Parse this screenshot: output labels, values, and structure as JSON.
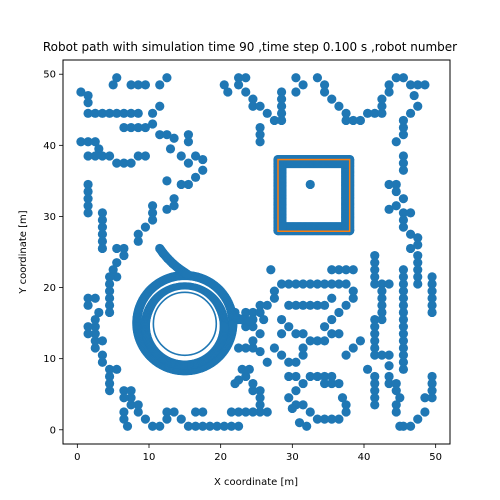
{
  "chart_data": {
    "type": "scatter",
    "title": "Robot path with simulation time 90 ,time step 0.100 s ,robot number",
    "xlabel": "X coordinate [m]",
    "ylabel": "Y coordinate [m]",
    "xlim": [
      -2,
      52
    ],
    "ylim": [
      -2,
      52
    ],
    "xticks": [
      0,
      10,
      20,
      30,
      40,
      50
    ],
    "yticks": [
      0,
      10,
      20,
      30,
      40,
      50
    ],
    "grid": false,
    "colors": {
      "path": "#1f77b4",
      "target": "#ff7f0e"
    },
    "obstacles": [
      [
        0.5,
        47.5
      ],
      [
        1.5,
        47.0
      ],
      [
        1.5,
        46.0
      ],
      [
        5.5,
        49.5
      ],
      [
        5.0,
        48.5
      ],
      [
        7.5,
        48.5
      ],
      [
        8.5,
        48.5
      ],
      [
        9.5,
        48.5
      ],
      [
        11.5,
        48.5
      ],
      [
        12.5,
        49.5
      ],
      [
        1.5,
        44.5
      ],
      [
        2.5,
        44.5
      ],
      [
        3.5,
        44.5
      ],
      [
        4.5,
        44.5
      ],
      [
        5.5,
        44.5
      ],
      [
        6.5,
        44.5
      ],
      [
        7.5,
        44.5
      ],
      [
        8.5,
        44.5
      ],
      [
        10.5,
        44.5
      ],
      [
        11.5,
        45.5
      ],
      [
        6.5,
        42.5
      ],
      [
        7.5,
        42.5
      ],
      [
        8.5,
        42.5
      ],
      [
        9.5,
        42.5
      ],
      [
        10.5,
        43.0
      ],
      [
        11.5,
        41.5
      ],
      [
        12.5,
        41.5
      ],
      [
        13.5,
        41.0
      ],
      [
        15.5,
        41.5
      ],
      [
        15.5,
        40.5
      ],
      [
        0.5,
        40.5
      ],
      [
        1.5,
        40.5
      ],
      [
        2.5,
        40.5
      ],
      [
        3.0,
        39.5
      ],
      [
        1.5,
        38.5
      ],
      [
        2.5,
        38.5
      ],
      [
        3.5,
        38.5
      ],
      [
        4.5,
        38.5
      ],
      [
        5.5,
        37.5
      ],
      [
        6.5,
        37.5
      ],
      [
        7.5,
        37.5
      ],
      [
        8.5,
        38.5
      ],
      [
        9.5,
        38.5
      ],
      [
        13.0,
        39.5
      ],
      [
        14.5,
        38.5
      ],
      [
        15.5,
        37.5
      ],
      [
        16.5,
        38.5
      ],
      [
        17.5,
        38.0
      ],
      [
        17.5,
        36.5
      ],
      [
        16.5,
        35.5
      ],
      [
        15.5,
        34.5
      ],
      [
        14.5,
        34.5
      ],
      [
        12.5,
        35.0
      ],
      [
        1.5,
        34.5
      ],
      [
        1.5,
        33.5
      ],
      [
        1.5,
        32.5
      ],
      [
        1.5,
        31.5
      ],
      [
        1.5,
        30.5
      ],
      [
        3.5,
        30.5
      ],
      [
        3.5,
        29.5
      ],
      [
        3.5,
        28.5
      ],
      [
        3.5,
        27.5
      ],
      [
        3.5,
        26.5
      ],
      [
        3.5,
        25.5
      ],
      [
        5.5,
        25.5
      ],
      [
        6.5,
        25.5
      ],
      [
        6.5,
        24.5
      ],
      [
        5.5,
        23.5
      ],
      [
        5.0,
        22.5
      ],
      [
        5.5,
        21.5
      ],
      [
        4.5,
        21.5
      ],
      [
        4.5,
        20.5
      ],
      [
        4.5,
        19.5
      ],
      [
        4.5,
        18.5
      ],
      [
        2.5,
        18.5
      ],
      [
        1.5,
        18.5
      ],
      [
        1.5,
        17.5
      ],
      [
        4.5,
        17.5
      ],
      [
        4.5,
        16.5
      ],
      [
        10.5,
        31.5
      ],
      [
        10.5,
        30.5
      ],
      [
        10.5,
        29.5
      ],
      [
        9.5,
        28.5
      ],
      [
        8.5,
        27.5
      ],
      [
        8.5,
        26.5
      ],
      [
        13.5,
        32.5
      ],
      [
        13.5,
        31.5
      ],
      [
        12.5,
        31.0
      ],
      [
        20.5,
        48.5
      ],
      [
        21.0,
        47.5
      ],
      [
        22.5,
        49.5
      ],
      [
        23.5,
        49.5
      ],
      [
        22.5,
        48.5
      ],
      [
        23.5,
        47.5
      ],
      [
        24.5,
        46.5
      ],
      [
        24.5,
        45.5
      ],
      [
        25.5,
        45.5
      ],
      [
        26.5,
        44.5
      ],
      [
        27.5,
        43.5
      ],
      [
        25.5,
        42.5
      ],
      [
        25.5,
        41.5
      ],
      [
        25.5,
        40.5
      ],
      [
        28.5,
        47.5
      ],
      [
        28.5,
        46.5
      ],
      [
        28.5,
        45.5
      ],
      [
        28.5,
        44.5
      ],
      [
        28.5,
        43.5
      ],
      [
        30.5,
        47.5
      ],
      [
        31.5,
        48.5
      ],
      [
        30.5,
        49.5
      ],
      [
        33.5,
        49.5
      ],
      [
        34.5,
        48.5
      ],
      [
        34.5,
        47.5
      ],
      [
        35.5,
        46.5
      ],
      [
        36.5,
        45.5
      ],
      [
        37.5,
        44.5
      ],
      [
        37.5,
        43.5
      ],
      [
        38.5,
        43.5
      ],
      [
        39.5,
        43.5
      ],
      [
        40.5,
        44.5
      ],
      [
        41.5,
        44.5
      ],
      [
        42.5,
        44.5
      ],
      [
        42.5,
        45.5
      ],
      [
        42.5,
        46.5
      ],
      [
        43.5,
        47.5
      ],
      [
        43.5,
        48.5
      ],
      [
        44.5,
        49.5
      ],
      [
        45.5,
        49.5
      ],
      [
        46.5,
        48.5
      ],
      [
        47.5,
        48.5
      ],
      [
        48.5,
        48.5
      ],
      [
        47.0,
        47.0
      ],
      [
        47.5,
        45.5
      ],
      [
        46.5,
        44.5
      ],
      [
        45.5,
        43.5
      ],
      [
        45.5,
        42.5
      ],
      [
        45.5,
        41.5
      ],
      [
        44.5,
        40.5
      ],
      [
        45.5,
        38.5
      ],
      [
        45.5,
        37.5
      ],
      [
        45.5,
        36.5
      ],
      [
        43.5,
        34.5
      ],
      [
        44.5,
        34.5
      ],
      [
        44.5,
        33.5
      ],
      [
        45.5,
        32.5
      ],
      [
        44.5,
        31.5
      ],
      [
        43.5,
        31.0
      ],
      [
        45.5,
        30.5
      ],
      [
        46.5,
        30.5
      ],
      [
        45.5,
        29.5
      ],
      [
        45.5,
        28.5
      ],
      [
        46.5,
        27.5
      ],
      [
        47.5,
        27.0
      ],
      [
        47.5,
        26.0
      ],
      [
        46.5,
        25.5
      ],
      [
        47.5,
        24.5
      ],
      [
        47.5,
        23.5
      ],
      [
        47.5,
        22.5
      ],
      [
        47.5,
        21.5
      ],
      [
        47.5,
        20.5
      ],
      [
        49.5,
        21.5
      ],
      [
        49.5,
        20.5
      ],
      [
        49.5,
        19.5
      ],
      [
        49.5,
        18.5
      ],
      [
        49.5,
        17.5
      ],
      [
        49.5,
        16.5
      ],
      [
        45.5,
        22.5
      ],
      [
        45.5,
        21.5
      ],
      [
        45.5,
        20.5
      ],
      [
        45.5,
        19.5
      ],
      [
        45.5,
        18.5
      ],
      [
        45.5,
        17.5
      ],
      [
        45.5,
        16.5
      ],
      [
        45.5,
        15.5
      ],
      [
        45.5,
        14.5
      ],
      [
        45.5,
        13.5
      ],
      [
        45.5,
        12.5
      ],
      [
        45.5,
        11.5
      ],
      [
        45.5,
        10.5
      ],
      [
        45.5,
        9.5
      ],
      [
        45.5,
        8.5
      ],
      [
        41.5,
        24.5
      ],
      [
        41.5,
        23.5
      ],
      [
        41.5,
        22.5
      ],
      [
        41.5,
        21.5
      ],
      [
        41.5,
        20.5
      ],
      [
        42.5,
        20.5
      ],
      [
        43.5,
        20.5
      ],
      [
        42.5,
        19.5
      ],
      [
        42.5,
        18.5
      ],
      [
        42.5,
        17.5
      ],
      [
        42.5,
        16.5
      ],
      [
        42.5,
        15.5
      ],
      [
        41.5,
        15.5
      ],
      [
        41.5,
        14.5
      ],
      [
        41.5,
        13.5
      ],
      [
        41.5,
        12.5
      ],
      [
        41.5,
        11.5
      ],
      [
        41.5,
        10.5
      ],
      [
        42.5,
        10.5
      ],
      [
        43.5,
        10.5
      ],
      [
        43.5,
        9.0
      ],
      [
        41.5,
        7.5
      ],
      [
        41.5,
        6.5
      ],
      [
        41.5,
        5.5
      ],
      [
        41.5,
        4.5
      ],
      [
        41.5,
        3.5
      ],
      [
        43.5,
        7.5
      ],
      [
        43.5,
        6.5
      ],
      [
        44.5,
        6.5
      ],
      [
        44.5,
        5.5
      ],
      [
        45.0,
        4.5
      ],
      [
        44.5,
        3.5
      ],
      [
        44.5,
        2.5
      ],
      [
        45.0,
        0.5
      ],
      [
        45.5,
        0.5
      ],
      [
        46.5,
        0.5
      ],
      [
        47.5,
        1.5
      ],
      [
        48.5,
        2.5
      ],
      [
        48.5,
        4.5
      ],
      [
        49.5,
        4.5
      ],
      [
        49.5,
        5.5
      ],
      [
        49.5,
        6.5
      ],
      [
        49.5,
        7.5
      ],
      [
        39.5,
        12.5
      ],
      [
        40.5,
        8.5
      ],
      [
        38.5,
        11.5
      ],
      [
        37.5,
        10.5
      ],
      [
        36.5,
        13.5
      ],
      [
        35.5,
        13.5
      ],
      [
        34.5,
        14.5
      ],
      [
        35.5,
        15.5
      ],
      [
        36.5,
        16.5
      ],
      [
        37.5,
        17.5
      ],
      [
        38.5,
        18.5
      ],
      [
        38.5,
        19.5
      ],
      [
        37.5,
        20.5
      ],
      [
        36.5,
        20.5
      ],
      [
        35.5,
        20.5
      ],
      [
        34.5,
        20.5
      ],
      [
        33.5,
        20.5
      ],
      [
        32.5,
        20.5
      ],
      [
        31.5,
        20.5
      ],
      [
        30.5,
        20.5
      ],
      [
        29.5,
        20.5
      ],
      [
        28.5,
        20.5
      ],
      [
        27.5,
        19.5
      ],
      [
        27.5,
        18.5
      ],
      [
        26.5,
        17.5
      ],
      [
        25.5,
        17.5
      ],
      [
        27.0,
        22.5
      ],
      [
        29.5,
        17.5
      ],
      [
        30.5,
        17.5
      ],
      [
        31.5,
        17.5
      ],
      [
        32.5,
        17.5
      ],
      [
        33.5,
        17.5
      ],
      [
        34.5,
        17.5
      ],
      [
        35.5,
        18.5
      ],
      [
        35.5,
        22.5
      ],
      [
        36.5,
        22.5
      ],
      [
        37.5,
        22.5
      ],
      [
        38.5,
        22.5
      ],
      [
        28.5,
        15.5
      ],
      [
        29.5,
        14.5
      ],
      [
        30.5,
        13.5
      ],
      [
        31.5,
        13.5
      ],
      [
        32.5,
        12.5
      ],
      [
        33.5,
        12.5
      ],
      [
        34.5,
        12.5
      ],
      [
        28.5,
        13.5
      ],
      [
        28.5,
        10.5
      ],
      [
        29.5,
        9.5
      ],
      [
        30.5,
        9.5
      ],
      [
        31.5,
        10.5
      ],
      [
        31.5,
        11.5
      ],
      [
        29.5,
        7.5
      ],
      [
        30.5,
        7.5
      ],
      [
        31.5,
        6.5
      ],
      [
        30.5,
        5.5
      ],
      [
        32.5,
        7.5
      ],
      [
        33.5,
        7.5
      ],
      [
        34.5,
        7.5
      ],
      [
        35.5,
        7.5
      ],
      [
        34.5,
        6.5
      ],
      [
        35.5,
        6.5
      ],
      [
        36.5,
        6.5
      ],
      [
        37.0,
        4.5
      ],
      [
        37.5,
        3.5
      ],
      [
        37.5,
        2.5
      ],
      [
        36.5,
        1.5
      ],
      [
        35.5,
        1.5
      ],
      [
        34.5,
        1.5
      ],
      [
        33.5,
        1.5
      ],
      [
        32.5,
        2.5
      ],
      [
        31.5,
        3.5
      ],
      [
        30.5,
        3.5
      ],
      [
        29.5,
        4.5
      ],
      [
        30.0,
        3.0
      ],
      [
        31.0,
        1.0
      ],
      [
        32.0,
        0.5
      ],
      [
        26.5,
        2.5
      ],
      [
        25.5,
        2.5
      ],
      [
        24.5,
        2.5
      ],
      [
        23.5,
        2.5
      ],
      [
        22.5,
        2.5
      ],
      [
        21.5,
        2.5
      ],
      [
        25.5,
        3.5
      ],
      [
        25.5,
        4.5
      ],
      [
        25.5,
        5.5
      ],
      [
        24.5,
        5.5
      ],
      [
        24.5,
        6.5
      ],
      [
        23.5,
        7.5
      ],
      [
        22.5,
        7.0
      ],
      [
        22.0,
        6.5
      ],
      [
        23.0,
        8.5
      ],
      [
        24.0,
        8.5
      ],
      [
        26.5,
        9.5
      ],
      [
        27.5,
        11.5
      ],
      [
        24.5,
        11.5
      ],
      [
        23.5,
        11.5
      ],
      [
        22.5,
        11.5
      ],
      [
        24.5,
        12.5
      ],
      [
        25.5,
        13.5
      ],
      [
        24.5,
        14.5
      ],
      [
        23.5,
        14.5
      ],
      [
        22.5,
        15.5
      ],
      [
        22.0,
        16.5
      ],
      [
        23.5,
        16.5
      ],
      [
        24.5,
        16.5
      ],
      [
        24.5,
        15.5
      ],
      [
        25.5,
        16.5
      ],
      [
        26.0,
        15.5
      ],
      [
        25.5,
        11.0
      ],
      [
        22.5,
        0.5
      ],
      [
        21.5,
        0.5
      ],
      [
        20.5,
        0.5
      ],
      [
        19.5,
        0.5
      ],
      [
        18.5,
        0.5
      ],
      [
        17.5,
        0.5
      ],
      [
        16.5,
        0.5
      ],
      [
        15.5,
        0.5
      ],
      [
        14.5,
        1.5
      ],
      [
        13.5,
        2.5
      ],
      [
        12.5,
        2.5
      ],
      [
        12.5,
        1.5
      ],
      [
        11.5,
        0.5
      ],
      [
        10.5,
        0.5
      ],
      [
        9.5,
        1.5
      ],
      [
        8.5,
        2.5
      ],
      [
        8.5,
        3.5
      ],
      [
        7.5,
        3.5
      ],
      [
        6.5,
        2.5
      ],
      [
        6.5,
        1.5
      ],
      [
        7.0,
        0.5
      ],
      [
        6.5,
        5.5
      ],
      [
        7.5,
        5.5
      ],
      [
        7.5,
        4.5
      ],
      [
        6.5,
        4.5
      ],
      [
        4.5,
        5.5
      ],
      [
        4.5,
        6.5
      ],
      [
        4.5,
        7.5
      ],
      [
        4.5,
        8.5
      ],
      [
        3.5,
        9.5
      ],
      [
        3.5,
        10.5
      ],
      [
        2.5,
        11.5
      ],
      [
        2.5,
        12.5
      ],
      [
        3.5,
        12.5
      ],
      [
        2.5,
        13.5
      ],
      [
        2.5,
        14.5
      ],
      [
        1.5,
        14.5
      ],
      [
        1.5,
        13.5
      ],
      [
        2.5,
        15.5
      ],
      [
        3.0,
        16.5
      ],
      [
        5.5,
        8.5
      ],
      [
        16.5,
        2.5
      ],
      [
        17.5,
        2.5
      ]
    ],
    "path_circle": {
      "center": [
        15.0,
        15.0
      ],
      "radius": 6.7
    },
    "path_inner_circle": {
      "center": [
        15.0,
        14.6
      ],
      "radius": 5.5
    },
    "path_tail": [
      [
        11.5,
        25.5
      ],
      [
        12.0,
        24.8
      ],
      [
        12.6,
        24.1
      ],
      [
        13.3,
        23.4
      ],
      [
        14.0,
        22.8
      ],
      [
        14.7,
        22.3
      ],
      [
        15.3,
        21.9
      ]
    ],
    "path_exit_tail": [
      [
        21.7,
        16.0
      ],
      [
        22.3,
        15.7
      ],
      [
        22.9,
        15.5
      ],
      [
        23.5,
        15.4
      ],
      [
        24.1,
        15.3
      ]
    ],
    "path_square": [
      [
        28.0,
        28.0
      ],
      [
        38.0,
        38.0
      ]
    ],
    "target": [
      [
        28.0,
        28.0
      ],
      [
        38.0,
        38.0
      ]
    ],
    "goal_point": [
      32.5,
      34.5
    ]
  }
}
